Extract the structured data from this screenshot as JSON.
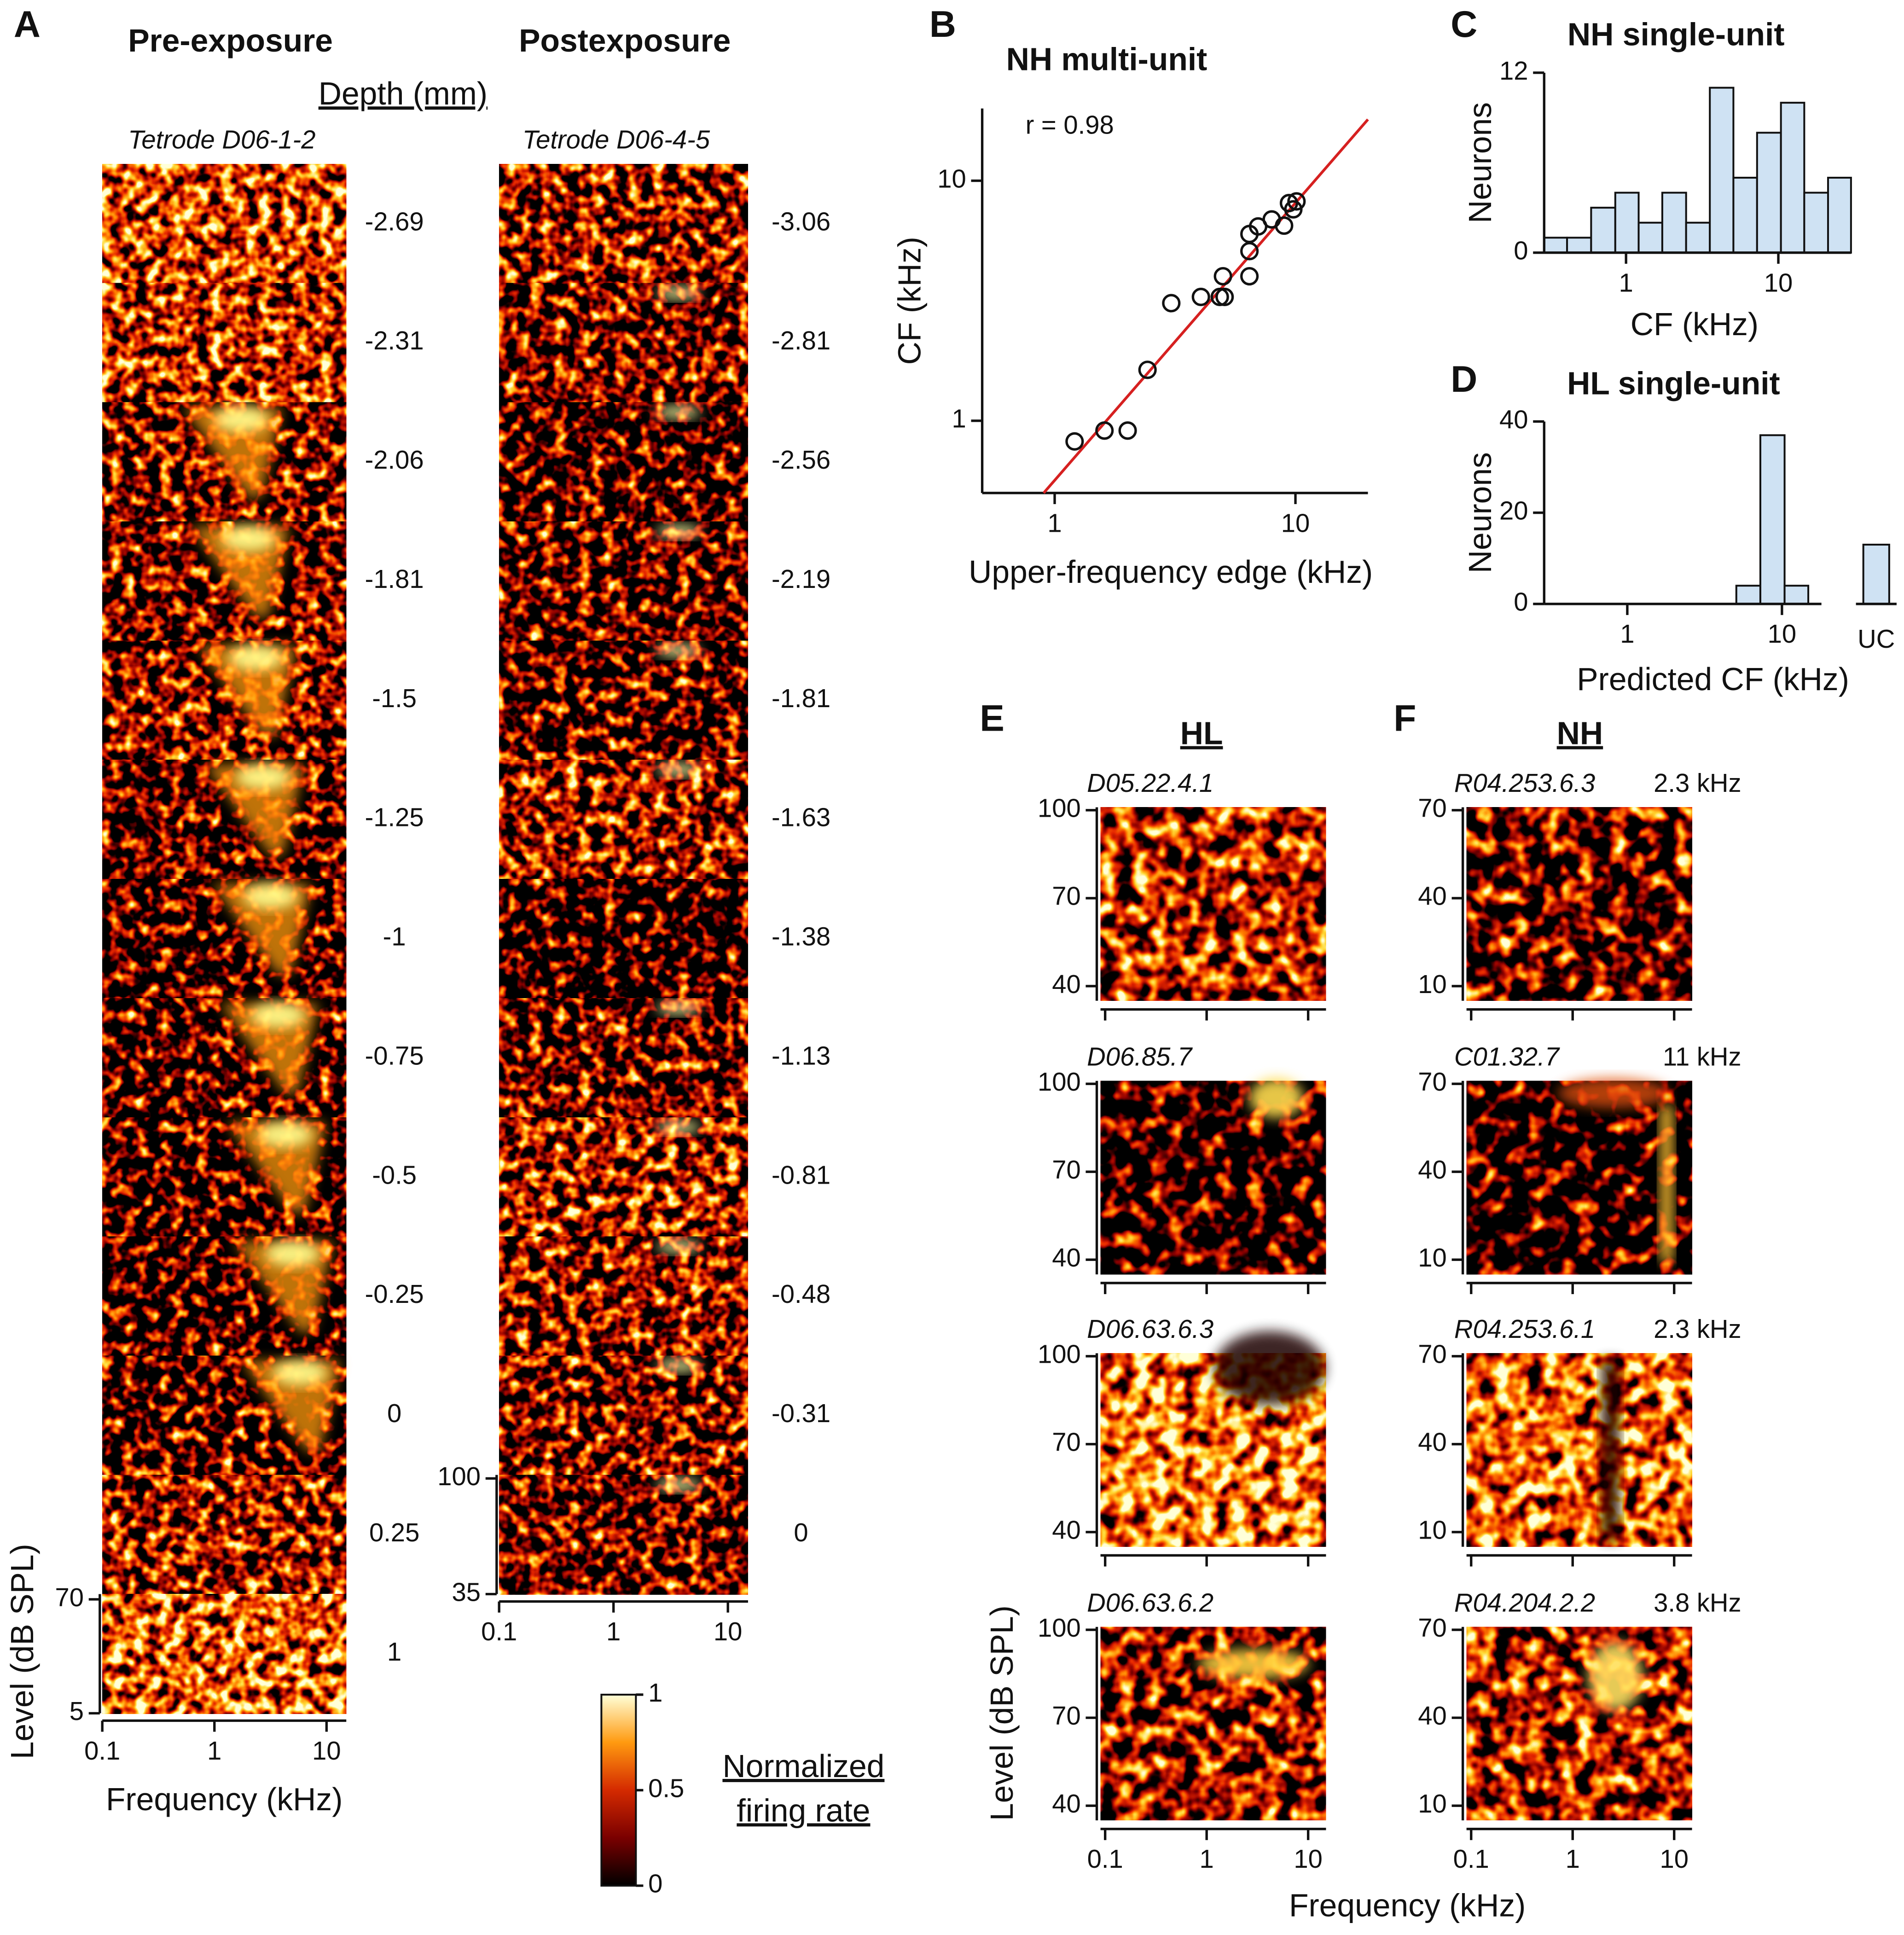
{
  "chart_data": [
    {
      "type": "heatmap_stack",
      "panel": "A",
      "title": "Pre-exposure",
      "header": "Depth (mm)",
      "subtitle": "Tetrode D06-1-2",
      "depths": [
        -2.69,
        -2.31,
        -2.06,
        -1.81,
        -1.5,
        -1.25,
        -1,
        -0.75,
        -0.5,
        -0.25,
        0,
        0.25,
        1
      ],
      "x_label": "Frequency (kHz)",
      "y_label": "Level (dB SPL)",
      "log_x": true,
      "xlim": [
        0.1,
        15
      ],
      "xticks": [
        0.1,
        1,
        10
      ],
      "ylim": [
        5,
        73
      ],
      "yticks": [
        5,
        70
      ]
    },
    {
      "type": "heatmap_stack",
      "title": "Postexposure",
      "subtitle": "Tetrode D06-4-5",
      "depths": [
        -3.06,
        -2.81,
        -2.56,
        -2.19,
        -1.81,
        -1.63,
        -1.38,
        -1.13,
        -0.81,
        -0.48,
        -0.31,
        0
      ],
      "log_x": true,
      "xlim": [
        0.1,
        15
      ],
      "xticks": [
        0.1,
        1,
        10
      ],
      "ylim": [
        35,
        102
      ],
      "yticks": [
        35,
        100
      ]
    },
    {
      "type": "colorbar",
      "label": [
        "Normalized",
        "firing rate"
      ],
      "ylim": [
        0,
        1
      ],
      "yticks": [
        0,
        0.5,
        1
      ],
      "colormap": [
        "#000000",
        "#7a0000",
        "#d42a00",
        "#ff9a10",
        "#ffffd8"
      ]
    },
    {
      "type": "scatter",
      "panel": "B",
      "title": "NH multi-unit",
      "annotation": "r = 0.98",
      "x_label": "Upper-frequency edge (kHz)",
      "y_label": "CF (kHz)",
      "log_x": true,
      "log_y": true,
      "xlim": [
        0.5,
        20
      ],
      "ylim": [
        0.5,
        20
      ],
      "xticks": [
        1,
        10
      ],
      "yticks": [
        1,
        10
      ],
      "x": [
        1.21,
        1.61,
        2.01,
        2.43,
        3.05,
        4.05,
        4.85,
        5.08,
        5.0,
        6.44,
        6.44,
        6.44,
        7.0,
        7.97,
        8.97,
        9.4,
        10.1,
        9.8
      ],
      "y": [
        0.82,
        0.91,
        0.91,
        1.63,
        3.09,
        3.28,
        3.28,
        3.28,
        4.0,
        4.0,
        5.09,
        6.0,
        6.45,
        6.9,
        6.5,
        8.07,
        8.2,
        7.6
      ],
      "point_color": "#111111",
      "fit": {
        "x": [
          0.9,
          20
        ],
        "y": [
          0.5,
          18
        ]
      },
      "fit_color": "#d62020"
    },
    {
      "type": "histogram",
      "panel": "C",
      "title": "NH single-unit",
      "x_label": "CF (kHz)",
      "y_label": "Neurons",
      "log_x": true,
      "xlim": [
        0.29,
        30
      ],
      "xticks": [
        1,
        10
      ],
      "ylim": [
        0,
        12
      ],
      "yticks": [
        0,
        12
      ],
      "bins": [
        0.29,
        0.41,
        0.59,
        0.85,
        1.21,
        1.73,
        2.48,
        3.55,
        5.07,
        7.25,
        10.4,
        14.8,
        21.2,
        30
      ],
      "counts": [
        1,
        1,
        3,
        4,
        2,
        4,
        2,
        11,
        5,
        8,
        10,
        4,
        5
      ],
      "color": "#cfe2f3"
    },
    {
      "type": "histogram",
      "panel": "D",
      "title": "HL single-unit",
      "x_label": "Predicted CF (kHz)",
      "y_label": "Neurons",
      "log_x": true,
      "xlim": [
        0.29,
        18
      ],
      "xticks": [
        1,
        10
      ],
      "ylim": [
        0,
        40
      ],
      "yticks": [
        0,
        20,
        40
      ],
      "bins": [
        5.07,
        7.25,
        10.4,
        14.8
      ],
      "counts": [
        4,
        37,
        4
      ],
      "uc_label": "UC",
      "uc_value": 13,
      "color": "#cfe2f3"
    },
    {
      "type": "heatmap_grid",
      "panel": "E",
      "title": "HL",
      "units": [
        "D05.22.4.1",
        "D06.85.7",
        "D06.63.6.3",
        "D06.63.6.2"
      ],
      "y_label": "Level (dB SPL)",
      "log_x": true,
      "xlim": [
        0.09,
        15
      ],
      "xticks": [
        0.1,
        1,
        10
      ],
      "ylim": [
        35,
        101
      ],
      "yticks": [
        40,
        70,
        100
      ]
    },
    {
      "type": "heatmap_grid",
      "panel": "F",
      "title": "NH",
      "units": [
        "R04.253.6.3",
        "C01.32.7",
        "R04.253.6.1",
        "R04.204.2.2"
      ],
      "cf_labels": [
        "2.3 kHz",
        "11 kHz",
        "2.3 kHz",
        "3.8 kHz"
      ],
      "x_label": "Frequency (kHz)",
      "log_x": true,
      "xlim": [
        0.09,
        15
      ],
      "xticks": [
        0.1,
        1,
        10
      ],
      "ylim": [
        5,
        71
      ],
      "yticks": [
        10,
        40,
        70
      ]
    }
  ]
}
